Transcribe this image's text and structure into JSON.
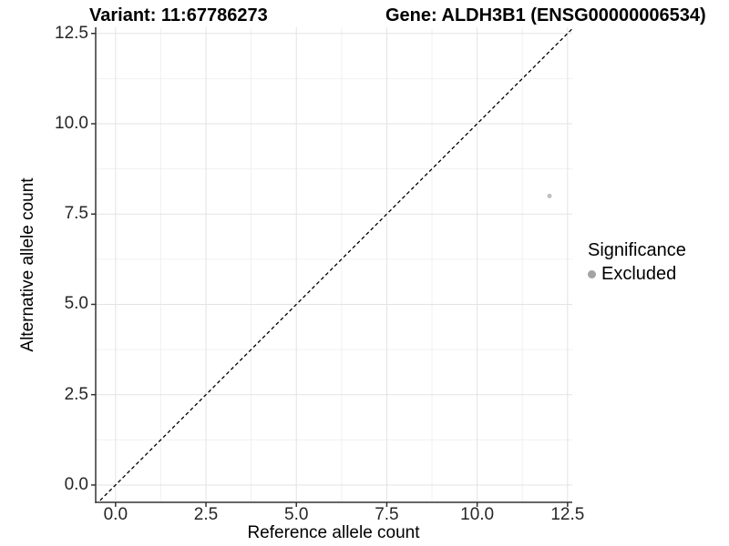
{
  "header": {
    "variant_title": "Variant: 11:67786273",
    "gene_title": "Gene: ALDH3B1 (ENSG00000006534)"
  },
  "chart_data": {
    "type": "scatter",
    "title": "Variant: 11:67786273 | Gene: ALDH3B1 (ENSG00000006534)",
    "xlabel": "Reference allele count",
    "ylabel": "Alternative allele count",
    "xlim": [
      -0.55,
      12.63
    ],
    "ylim": [
      -0.48,
      12.67
    ],
    "x_ticks": [
      0,
      2.5,
      5,
      7.5,
      10,
      12.5
    ],
    "x_tick_labels": [
      "0.0",
      "2.5",
      "5.0",
      "7.5",
      "10.0",
      "12.5"
    ],
    "y_ticks": [
      0,
      2.5,
      5,
      7.5,
      10,
      12.5
    ],
    "y_tick_labels": [
      "0.0",
      "2.5",
      "5.0",
      "7.5",
      "10.0",
      "12.5"
    ],
    "x_minor_ticks": [
      1.25,
      3.75,
      6.25,
      8.75,
      11.25
    ],
    "y_minor_ticks": [
      1.25,
      3.75,
      6.25,
      8.75,
      11.25
    ],
    "grid": "major and minor gridlines, light gray, on white background",
    "legend_position": "right-middle",
    "reference_line": {
      "equation": "y = x",
      "style": "dashed",
      "color": "#000000"
    },
    "series": [
      {
        "name": "Excluded",
        "point_color": "#bfbfbf",
        "point_radius": 2.5,
        "points": [
          {
            "x": 12,
            "y": 8
          }
        ]
      }
    ],
    "legend": {
      "title": "Significance",
      "items": [
        {
          "label": "Excluded",
          "marker": "circle",
          "color": "#a3a3a3"
        }
      ]
    }
  },
  "colors": {
    "background": "#ffffff",
    "axis_line": "#333333",
    "major_grid": "#e3e3e3",
    "minor_grid": "#f0f0f0",
    "tick_mark": "#333333",
    "tick_text": "#262626",
    "title_text": "#000000"
  }
}
